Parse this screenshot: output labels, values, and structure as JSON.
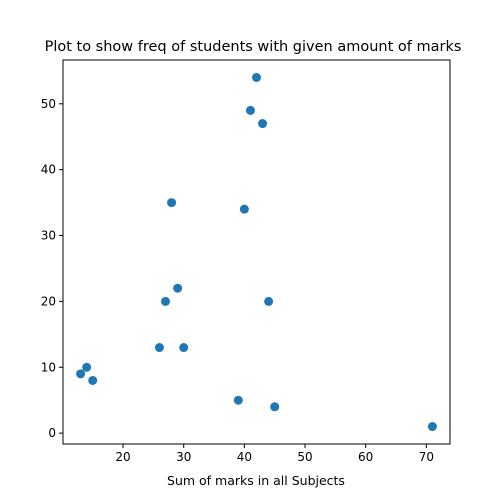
{
  "chart_data": {
    "type": "scatter",
    "title": "Plot to show freq of students with given amount of marks",
    "xlabel": "Sum of marks in all Subjects",
    "ylabel": "",
    "xlim": [
      10.1,
      73.9
    ],
    "ylim": [
      -1.65,
      56.65
    ],
    "xticks": [
      20,
      30,
      40,
      50,
      60,
      70
    ],
    "yticks": [
      0,
      10,
      20,
      30,
      40,
      50
    ],
    "grid": false,
    "marker_color": "#1f77b4",
    "points": [
      {
        "x": 42,
        "y": 54
      },
      {
        "x": 41,
        "y": 49
      },
      {
        "x": 43,
        "y": 47
      },
      {
        "x": 28,
        "y": 35
      },
      {
        "x": 40,
        "y": 34
      },
      {
        "x": 29,
        "y": 22
      },
      {
        "x": 27,
        "y": 20
      },
      {
        "x": 44,
        "y": 20
      },
      {
        "x": 26,
        "y": 13
      },
      {
        "x": 30,
        "y": 13
      },
      {
        "x": 14,
        "y": 10
      },
      {
        "x": 13,
        "y": 9
      },
      {
        "x": 15,
        "y": 8
      },
      {
        "x": 39,
        "y": 5
      },
      {
        "x": 45,
        "y": 4
      },
      {
        "x": 71,
        "y": 1
      }
    ]
  }
}
